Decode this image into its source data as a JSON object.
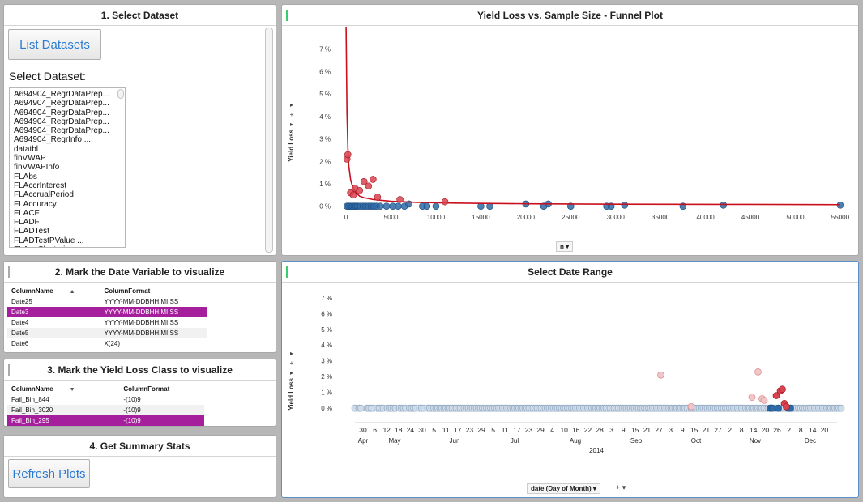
{
  "panel1": {
    "title": "1. Select Dataset",
    "list_button": "List Datasets",
    "select_label": "Select Dataset:",
    "datasets": [
      "A694904_RegrDataPrep...",
      "A694904_RegrDataPrep...",
      "A694904_RegrDataPrep...",
      "A694904_RegrDataPrep...",
      "A694904_RegrDataPrep...",
      "A694904_RegrInfo      ...",
      "datatbl",
      "finVWAP",
      "finVWAPInfo",
      "FLAbs",
      "FLAccrInterest",
      "FLAccrualPeriod",
      "FLAccuracy",
      "FLACF",
      "FLADF",
      "FLADTest",
      "FLADTestPValue      ...",
      "FLAggClustering      ..."
    ]
  },
  "panel2": {
    "title": "2. Mark the Date Variable to visualize",
    "col_name": "ColumnName",
    "col_format": "ColumnFormat",
    "rows": [
      {
        "name": "Date25",
        "format": "YYYY-MM-DDBHH:MI:SS"
      },
      {
        "name": "Date3",
        "format": "YYYY-MM-DDBHH:MI:SS"
      },
      {
        "name": "Date4",
        "format": "YYYY-MM-DDBHH:MI:SS"
      },
      {
        "name": "Date5",
        "format": "YYYY-MM-DDBHH:MI:SS"
      },
      {
        "name": "Date6",
        "format": "X(24)"
      }
    ]
  },
  "panel3": {
    "title": "3. Mark the Yield Loss Class to visualize",
    "col_name": "ColumnName",
    "col_format": "ColumnFormat",
    "rows": [
      {
        "name": "Fail_Bin_844",
        "format": "-(10)9"
      },
      {
        "name": "Fail_Bin_3020",
        "format": "-(10)9"
      },
      {
        "name": "Fail_Bin_295",
        "format": "-(10)9"
      }
    ]
  },
  "panel4": {
    "title": "4. Get Summary Stats",
    "refresh_button": "Refresh Plots"
  },
  "funnel": {
    "title": "Yield Loss vs. Sample Size - Funnel Plot",
    "y_axis_label": "Yield Loss",
    "x_axis_selector": "n",
    "tool_expand": "▸",
    "tool_plus": "+",
    "colors": {
      "red": "#d9434f",
      "blue": "#2e6aa6",
      "line": "#c8101e"
    }
  },
  "daterange": {
    "title": "Select Date Range",
    "y_axis_label": "Yield Loss",
    "x_axis_selector": "date (Day of Month)",
    "tool_expand": "▸",
    "tool_plus": "+",
    "year_label": "2014",
    "day_ticks": [
      "30",
      "6",
      "12",
      "18",
      "24",
      "30",
      "5",
      "11",
      "17",
      "23",
      "29",
      "5",
      "11",
      "17",
      "23",
      "29",
      "4",
      "10",
      "16",
      "22",
      "28",
      "3",
      "9",
      "15",
      "21",
      "27",
      "3",
      "9",
      "15",
      "21",
      "27",
      "2",
      "8",
      "14",
      "20",
      "26",
      "2",
      "8",
      "14",
      "20"
    ],
    "month_labels": [
      "Apr",
      "May",
      "Jun",
      "Jul",
      "Aug",
      "Sep",
      "Oct",
      "Nov",
      "Dec"
    ]
  },
  "chart_data": [
    {
      "type": "scatter",
      "title": "Yield Loss vs. Sample Size - Funnel Plot",
      "xlabel": "n",
      "ylabel": "Yield Loss",
      "xlim": [
        -1000,
        56000
      ],
      "ylim": [
        -0.3,
        8
      ],
      "x_ticks": [
        0,
        5000,
        10000,
        15000,
        20000,
        25000,
        30000,
        35000,
        40000,
        45000,
        50000,
        55000
      ],
      "y_ticks": [
        0,
        1,
        2,
        3,
        4,
        5,
        6,
        7
      ],
      "y_unit": "%",
      "series": [
        {
          "name": "red",
          "points": [
            [
              100,
              2.1
            ],
            [
              200,
              2.3
            ],
            [
              500,
              0.6
            ],
            [
              800,
              0.5
            ],
            [
              1000,
              0.8
            ],
            [
              1500,
              0.7
            ],
            [
              2000,
              1.1
            ],
            [
              2500,
              0.9
            ],
            [
              3000,
              1.2
            ],
            [
              3500,
              0.4
            ],
            [
              6000,
              0.3
            ],
            [
              11000,
              0.2
            ]
          ]
        },
        {
          "name": "blue",
          "points": [
            [
              100,
              0
            ],
            [
              300,
              0
            ],
            [
              500,
              0
            ],
            [
              700,
              0
            ],
            [
              900,
              0
            ],
            [
              1100,
              0
            ],
            [
              1300,
              0
            ],
            [
              1600,
              0
            ],
            [
              1900,
              0
            ],
            [
              2200,
              0
            ],
            [
              2500,
              0
            ],
            [
              2800,
              0
            ],
            [
              3100,
              0
            ],
            [
              3400,
              0
            ],
            [
              3800,
              0
            ],
            [
              4500,
              0
            ],
            [
              5200,
              0
            ],
            [
              5800,
              0
            ],
            [
              6500,
              0
            ],
            [
              7000,
              0.1
            ],
            [
              8500,
              0
            ],
            [
              9000,
              0
            ],
            [
              10000,
              0
            ],
            [
              15000,
              0
            ],
            [
              16000,
              0
            ],
            [
              20000,
              0.1
            ],
            [
              22000,
              0
            ],
            [
              22500,
              0.1
            ],
            [
              25000,
              0
            ],
            [
              29000,
              0
            ],
            [
              29500,
              0
            ],
            [
              31000,
              0.05
            ],
            [
              37500,
              0
            ],
            [
              42000,
              0.05
            ],
            [
              55000,
              0.05
            ]
          ]
        }
      ],
      "funnel_line": [
        [
          0,
          8
        ],
        [
          100,
          4.2
        ],
        [
          200,
          2.6
        ],
        [
          300,
          1.8
        ],
        [
          500,
          1.2
        ],
        [
          700,
          0.9
        ],
        [
          1000,
          0.65
        ],
        [
          1500,
          0.45
        ],
        [
          2000,
          0.38
        ],
        [
          3000,
          0.3
        ],
        [
          5000,
          0.22
        ],
        [
          8000,
          0.17
        ],
        [
          12000,
          0.14
        ],
        [
          20000,
          0.11
        ],
        [
          30000,
          0.09
        ],
        [
          45000,
          0.08
        ],
        [
          55000,
          0.07
        ]
      ]
    },
    {
      "type": "scatter",
      "title": "Select Date Range",
      "xlabel": "date (Day of Month)",
      "ylabel": "Yield Loss",
      "ylim": [
        -0.3,
        7.4
      ],
      "y_ticks": [
        0,
        1,
        2,
        3,
        4,
        5,
        6,
        7
      ],
      "y_unit": "%",
      "series": [
        {
          "name": "light-blue",
          "day_indices": [
            0,
            2,
            3,
            6,
            7,
            8,
            9,
            11,
            12,
            13,
            14,
            16,
            17,
            18,
            19,
            20,
            22,
            23,
            24,
            25,
            27,
            28,
            29,
            30,
            32,
            33,
            34,
            36,
            37,
            38,
            39,
            40,
            41,
            42,
            43,
            44,
            45,
            46,
            47,
            48,
            49,
            50,
            51,
            52,
            53,
            54,
            55,
            56,
            57,
            58,
            59,
            60,
            61,
            62,
            63,
            64,
            65,
            66,
            67,
            68,
            69,
            70,
            71,
            72,
            73,
            74,
            75,
            76,
            77,
            78,
            79,
            80,
            81,
            82,
            83,
            84,
            85,
            86,
            87,
            88,
            89,
            90,
            91,
            92,
            93,
            94,
            95,
            96,
            97,
            98,
            99,
            100,
            101,
            102,
            103,
            104,
            105,
            106,
            107,
            108,
            109,
            110,
            111,
            112,
            113,
            114,
            115,
            116,
            117,
            118,
            119,
            120,
            121,
            122,
            123,
            124,
            125,
            126,
            127,
            128,
            129,
            130,
            131,
            132,
            133,
            134,
            135,
            136,
            137,
            138,
            139,
            140,
            141,
            142,
            143,
            144,
            145,
            146,
            147,
            148,
            149,
            150,
            151,
            152,
            153,
            154,
            155,
            156,
            157,
            158,
            159,
            160,
            161,
            162,
            163,
            164,
            165,
            166,
            167,
            168,
            169,
            170,
            171,
            172,
            173,
            174,
            175,
            176,
            177,
            178,
            179,
            180,
            181,
            182,
            183,
            184,
            185,
            186,
            187,
            188,
            189,
            190,
            191,
            192,
            193,
            194,
            195,
            196,
            197,
            198,
            199,
            200,
            201,
            202,
            203,
            204,
            205,
            206,
            207,
            208,
            209,
            210,
            211,
            212,
            213,
            214,
            215,
            216,
            217,
            218,
            219,
            220,
            221,
            222,
            223,
            224,
            225,
            226,
            227,
            228,
            229,
            230,
            231,
            232,
            233,
            234,
            235,
            236,
            237,
            238,
            239,
            240
          ],
          "value": 0
        },
        {
          "name": "pink",
          "points": [
            [
              151,
              2.1
            ],
            [
              166,
              0.1
            ],
            [
              196,
              0.7
            ],
            [
              199,
              2.3
            ],
            [
              201,
              0.6
            ],
            [
              202,
              0.5
            ]
          ]
        },
        {
          "name": "red",
          "points": [
            [
              208,
              0.8
            ],
            [
              210,
              1.1
            ],
            [
              211,
              1.2
            ],
            [
              212,
              0.3
            ],
            [
              213,
              0.1
            ]
          ]
        },
        {
          "name": "dark-blue",
          "points": [
            [
              205,
              0
            ],
            [
              206,
              0
            ],
            [
              209,
              0
            ],
            [
              214,
              0
            ],
            [
              215,
              0
            ]
          ]
        }
      ]
    }
  ]
}
